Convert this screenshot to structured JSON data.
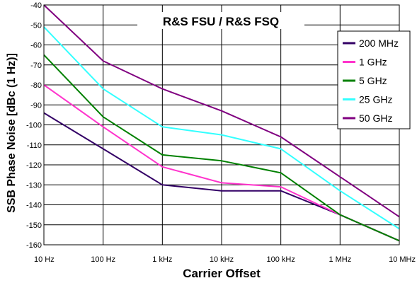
{
  "chart_data": {
    "type": "line",
    "title": "R&S FSU / R&S FSQ",
    "xlabel": "Carrier Offset",
    "ylabel": "SSB Phase Noise [dBc (1 Hz)]",
    "x_scale": "log",
    "x_values": [
      10,
      100,
      1000,
      10000,
      100000,
      1000000,
      10000000
    ],
    "categories": [
      "10 Hz",
      "100 Hz",
      "1 kHz",
      "10 kHz",
      "100 kHz",
      "1 MHz",
      "10 MHz"
    ],
    "ylim": [
      -160,
      -40
    ],
    "yticks": [
      -40,
      -50,
      -60,
      -70,
      -80,
      -90,
      -100,
      -110,
      -120,
      -130,
      -140,
      -150,
      -160
    ],
    "grid": true,
    "legend_position": "top-right",
    "series": [
      {
        "name": "200 MHz",
        "color": "#330066",
        "values": [
          -94,
          -112,
          -130,
          -133,
          -133,
          -145,
          -158
        ]
      },
      {
        "name": "1 GHz",
        "color": "#ff33cc",
        "values": [
          -80,
          -101,
          -121,
          -129,
          -131,
          -145,
          -158
        ]
      },
      {
        "name": "5 GHz",
        "color": "#008000",
        "values": [
          -65,
          -96,
          -115,
          -118,
          -124,
          -145,
          -158
        ]
      },
      {
        "name": "25 GHz",
        "color": "#33ffff",
        "values": [
          -51,
          -82,
          -101,
          -105,
          -112,
          -133,
          -152
        ]
      },
      {
        "name": "50 GHz",
        "color": "#800080",
        "values": [
          -40,
          -68,
          -82,
          -93,
          -106,
          -126,
          -146
        ]
      }
    ]
  }
}
